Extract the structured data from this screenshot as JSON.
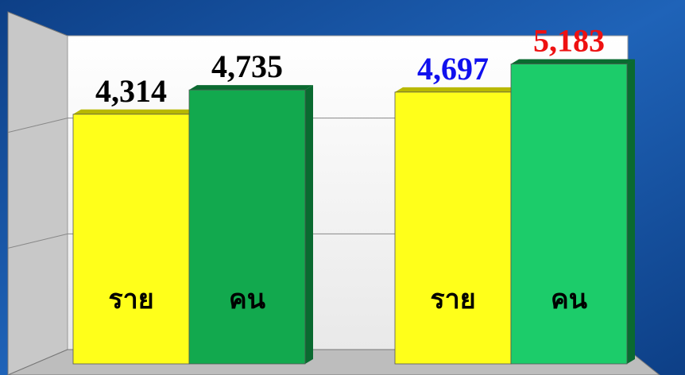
{
  "chart_data": {
    "type": "bar",
    "categories": [
      "ราย",
      "คน",
      "ราย",
      "คน"
    ],
    "values": [
      4314,
      4735,
      4697,
      5183
    ],
    "value_labels": [
      "4,314",
      "4,735",
      "4,697",
      "5,183"
    ],
    "colors": [
      "#ffff1a",
      "#12a94e",
      "#ffff1a",
      "#1ccc6a"
    ],
    "label_colors": [
      "#000000",
      "#000000",
      "#1010ee",
      "#ee1111"
    ],
    "ylim": [
      0,
      6000
    ],
    "yticks": [
      2000,
      4000
    ],
    "grid": true
  }
}
